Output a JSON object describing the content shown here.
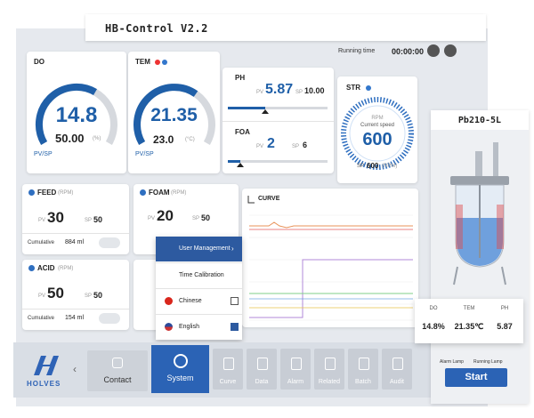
{
  "header": {
    "title": "HB-Control V2.2",
    "running_time_label": "Running time",
    "running_time": "00:00:00"
  },
  "panels": {
    "do": {
      "label": "DO",
      "pv": "14.8",
      "sp": "50.00",
      "unit": "(%)",
      "pvsp": "PV/SP"
    },
    "tem": {
      "label": "TEM",
      "pv": "21.35",
      "sp": "23.0",
      "unit": "(°C)",
      "pvsp": "PV/SP"
    },
    "ph": {
      "label": "PH",
      "pv_label": "PV",
      "pv": "5.87",
      "sp_label": "SP",
      "sp": "10.00"
    },
    "foa": {
      "label": "FOA",
      "pv_label": "PV",
      "pv": "2",
      "sp_label": "SP",
      "sp": "6"
    },
    "str": {
      "label": "STR",
      "rpm": "RPM",
      "speed_label": "Current speed",
      "speed": "600",
      "sp_label": "SP",
      "sp": "600",
      "unit": "(RPM)"
    },
    "feed": {
      "label": "FEED",
      "unit": "(RPM)",
      "pv_label": "PV",
      "pv": "30",
      "sp_label": "SP",
      "sp": "50",
      "cumulative_label": "Cumulative",
      "cumulative": "884 ml"
    },
    "foam": {
      "label": "FOAM",
      "unit": "(RPM)",
      "pv_label": "PV",
      "pv": "20",
      "sp_label": "SP",
      "sp": "50"
    },
    "acid": {
      "label": "ACID",
      "unit": "(RPM)",
      "pv_label": "PV",
      "pv": "50",
      "sp_label": "SP",
      "sp": "50",
      "cumulative_label": "Cumulative",
      "cumulative": "154 ml"
    },
    "curve": {
      "label": "CURVE"
    }
  },
  "menu": {
    "items": [
      "User Management",
      "Time Calibration",
      "Chinese",
      "English"
    ]
  },
  "nav": {
    "brand": "HOLVES",
    "items": [
      "Contact",
      "System",
      "Curve",
      "Data",
      "Alarm",
      "Related",
      "Batch",
      "Audit"
    ]
  },
  "device": {
    "title": "Pb210-5L",
    "readouts": [
      {
        "label": "DO",
        "value": "14.8%"
      },
      {
        "label": "TEM",
        "value": "21.35℃"
      },
      {
        "label": "PH",
        "value": "5.87"
      }
    ],
    "alarm_lamp": "Alarm Lamp",
    "running_lamp": "Running Lamp",
    "start": "Start"
  }
}
